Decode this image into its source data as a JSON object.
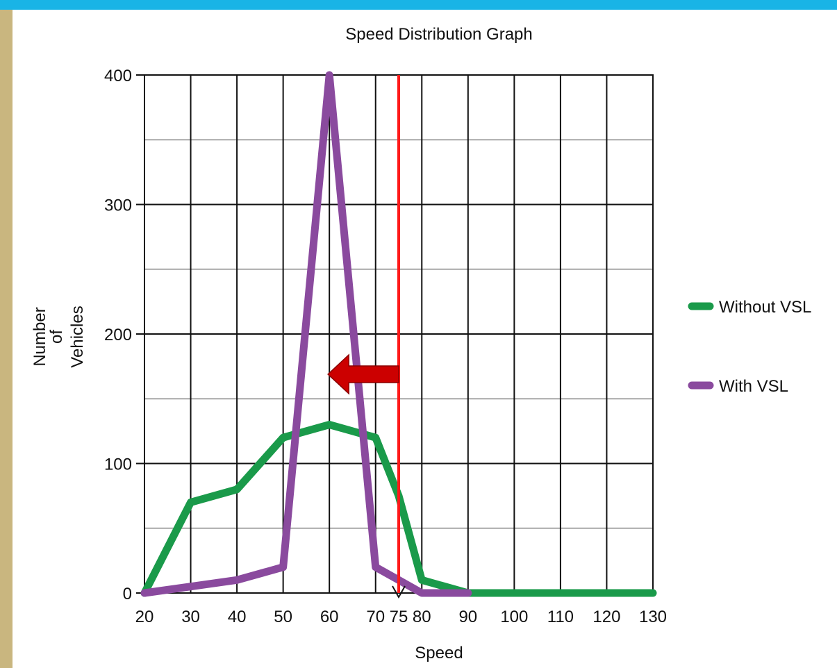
{
  "chart_data": {
    "type": "line",
    "title": "Speed Distribution Graph",
    "xlabel": "Speed",
    "ylabel": "Number of Vehicles",
    "ylabel_lines": [
      "Number",
      "of",
      "Vehicles"
    ],
    "x_ticks": [
      20,
      30,
      40,
      50,
      60,
      70,
      75,
      80,
      90,
      100,
      110,
      120,
      130
    ],
    "x_grid": [
      20,
      30,
      40,
      50,
      60,
      70,
      80,
      90,
      100,
      110,
      120,
      130
    ],
    "y_ticks": [
      0,
      100,
      200,
      300,
      400
    ],
    "y_minor_grid": [
      50,
      150,
      250,
      350
    ],
    "xlim": [
      20,
      130
    ],
    "ylim": [
      0,
      400
    ],
    "grid": true,
    "legend_position": "right",
    "series": [
      {
        "name": "Without VSL",
        "color": "#1a9a4a",
        "points": [
          [
            20,
            0
          ],
          [
            30,
            70
          ],
          [
            40,
            80
          ],
          [
            50,
            120
          ],
          [
            60,
            130
          ],
          [
            70,
            120
          ],
          [
            75,
            75
          ],
          [
            80,
            10
          ],
          [
            90,
            0
          ],
          [
            100,
            0
          ],
          [
            110,
            0
          ],
          [
            120,
            0
          ],
          [
            130,
            0
          ]
        ]
      },
      {
        "name": "With VSL",
        "color": "#8a4a9e",
        "points": [
          [
            20,
            0
          ],
          [
            30,
            5
          ],
          [
            40,
            10
          ],
          [
            50,
            20
          ],
          [
            60,
            400
          ],
          [
            70,
            20
          ],
          [
            75,
            10
          ],
          [
            80,
            0
          ],
          [
            90,
            0
          ]
        ]
      }
    ],
    "annotations": {
      "speed_limit_line": {
        "x": 75,
        "color": "#ff1a1a"
      },
      "shift_arrow": {
        "from_x": 75,
        "to_x": 60,
        "y": 170,
        "color": "#cc0000",
        "direction": "left"
      }
    }
  }
}
